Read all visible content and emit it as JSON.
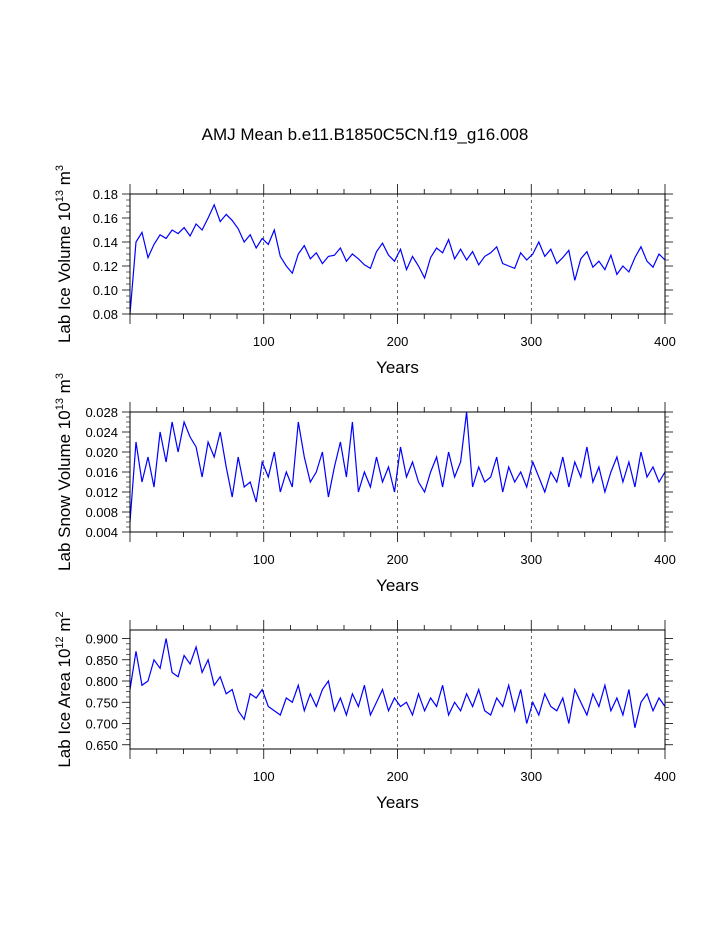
{
  "title": "AMJ Mean b.e11.B1850C5CN.f19_g16.008",
  "chart_data": [
    {
      "type": "line",
      "id": "ice-volume",
      "ylabel_text": "Lab Ice Volume 10",
      "ylabel_exp": "13",
      "ylabel_unit": " m",
      "ylabel_unit_exp": "3",
      "xlabel": "Years",
      "xlim": [
        0,
        400
      ],
      "ylim": [
        0.08,
        0.18
      ],
      "xticks": [
        "100",
        "200",
        "300",
        "400"
      ],
      "yticks": [
        "0.08",
        "0.10",
        "0.12",
        "0.14",
        "0.16",
        "0.18"
      ],
      "color": "#0000ff",
      "series": [
        {
          "name": "Lab Ice Volume",
          "values": [
            0.08,
            0.14,
            0.148,
            0.127,
            0.138,
            0.146,
            0.143,
            0.15,
            0.147,
            0.152,
            0.145,
            0.155,
            0.15,
            0.16,
            0.171,
            0.157,
            0.163,
            0.158,
            0.151,
            0.14,
            0.146,
            0.135,
            0.143,
            0.138,
            0.15,
            0.128,
            0.12,
            0.114,
            0.13,
            0.137,
            0.126,
            0.131,
            0.122,
            0.128,
            0.129,
            0.135,
            0.124,
            0.13,
            0.126,
            0.121,
            0.118,
            0.132,
            0.139,
            0.129,
            0.124,
            0.134,
            0.117,
            0.128,
            0.12,
            0.11,
            0.127,
            0.135,
            0.131,
            0.142,
            0.126,
            0.134,
            0.125,
            0.132,
            0.121,
            0.128,
            0.131,
            0.136,
            0.122,
            0.12,
            0.118,
            0.131,
            0.125,
            0.13,
            0.14,
            0.128,
            0.134,
            0.122,
            0.127,
            0.133,
            0.108,
            0.126,
            0.132,
            0.119,
            0.124,
            0.117,
            0.129,
            0.113,
            0.12,
            0.115,
            0.127,
            0.136,
            0.124,
            0.119,
            0.13,
            0.125
          ]
        }
      ]
    },
    {
      "type": "line",
      "id": "snow-volume",
      "ylabel_text": "Lab Snow Volume 10",
      "ylabel_exp": "13",
      "ylabel_unit": " m",
      "ylabel_unit_exp": "3",
      "xlabel": "Years",
      "xlim": [
        0,
        400
      ],
      "ylim": [
        0.004,
        0.028
      ],
      "xticks": [
        "100",
        "200",
        "300",
        "400"
      ],
      "yticks": [
        "0.004",
        "0.008",
        "0.012",
        "0.016",
        "0.020",
        "0.024",
        "0.028"
      ],
      "color": "#0000ff",
      "series": [
        {
          "name": "Lab Snow Volume",
          "values": [
            0.006,
            0.022,
            0.014,
            0.019,
            0.013,
            0.024,
            0.018,
            0.026,
            0.02,
            0.026,
            0.023,
            0.021,
            0.015,
            0.022,
            0.019,
            0.024,
            0.017,
            0.011,
            0.019,
            0.013,
            0.014,
            0.01,
            0.018,
            0.015,
            0.02,
            0.012,
            0.016,
            0.013,
            0.026,
            0.019,
            0.014,
            0.016,
            0.02,
            0.011,
            0.017,
            0.022,
            0.015,
            0.026,
            0.012,
            0.016,
            0.013,
            0.019,
            0.014,
            0.017,
            0.012,
            0.021,
            0.015,
            0.018,
            0.014,
            0.012,
            0.016,
            0.019,
            0.013,
            0.02,
            0.015,
            0.018,
            0.028,
            0.013,
            0.017,
            0.014,
            0.015,
            0.019,
            0.012,
            0.017,
            0.014,
            0.016,
            0.013,
            0.018,
            0.015,
            0.012,
            0.016,
            0.014,
            0.019,
            0.013,
            0.018,
            0.015,
            0.021,
            0.014,
            0.017,
            0.012,
            0.016,
            0.019,
            0.014,
            0.018,
            0.013,
            0.02,
            0.015,
            0.017,
            0.014,
            0.016
          ]
        }
      ]
    },
    {
      "type": "line",
      "id": "ice-area",
      "ylabel_text": "Lab Ice Area 10",
      "ylabel_exp": "12",
      "ylabel_unit": " m",
      "ylabel_unit_exp": "2",
      "xlabel": "Years",
      "xlim": [
        0,
        400
      ],
      "ylim": [
        0.64,
        0.92
      ],
      "xticks": [
        "100",
        "200",
        "300",
        "400"
      ],
      "yticks": [
        "0.650",
        "0.700",
        "0.750",
        "0.800",
        "0.850",
        "0.900"
      ],
      "color": "#0000ff",
      "series": [
        {
          "name": "Lab Ice Area",
          "values": [
            0.78,
            0.87,
            0.79,
            0.8,
            0.85,
            0.83,
            0.9,
            0.82,
            0.81,
            0.86,
            0.84,
            0.88,
            0.82,
            0.85,
            0.79,
            0.81,
            0.77,
            0.78,
            0.73,
            0.71,
            0.77,
            0.76,
            0.78,
            0.74,
            0.73,
            0.72,
            0.76,
            0.75,
            0.79,
            0.73,
            0.77,
            0.74,
            0.78,
            0.8,
            0.73,
            0.76,
            0.72,
            0.77,
            0.74,
            0.79,
            0.72,
            0.75,
            0.78,
            0.73,
            0.76,
            0.74,
            0.75,
            0.72,
            0.77,
            0.73,
            0.76,
            0.74,
            0.79,
            0.72,
            0.75,
            0.73,
            0.77,
            0.74,
            0.78,
            0.73,
            0.72,
            0.76,
            0.74,
            0.79,
            0.73,
            0.78,
            0.7,
            0.75,
            0.72,
            0.77,
            0.74,
            0.73,
            0.76,
            0.7,
            0.78,
            0.75,
            0.72,
            0.77,
            0.74,
            0.79,
            0.73,
            0.76,
            0.72,
            0.78,
            0.69,
            0.75,
            0.77,
            0.73,
            0.76,
            0.74
          ]
        }
      ]
    }
  ]
}
